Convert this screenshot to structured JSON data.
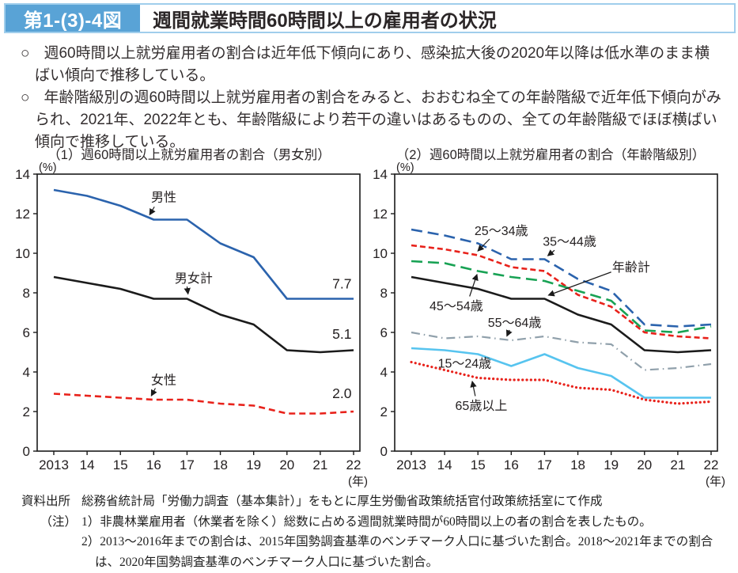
{
  "header": {
    "figure_label": "第1-(3)-4図",
    "title": "週間就業時間60時間以上の雇用者の状況"
  },
  "bullets": [
    {
      "marker": "○",
      "text": "週60時間以上就労雇用者の割合は近年低下傾向にあり、感染拡大後の2020年以降は低水準のまま横ばい傾向で推移している。"
    },
    {
      "marker": "○",
      "text": "年齢階級別の週60時間以上就労雇用者の割合をみると、おおむね全ての年齢階級で近年低下傾向がみられ、2021年、2022年とも、年齢階級により若干の違いはあるものの、全ての年齢階級でほぼ横ばい傾向で推移している。"
    }
  ],
  "chart_data": [
    {
      "type": "line",
      "title": "（1）週60時間以上就労雇用者の割合（男女別）",
      "ylabel": "(%)",
      "x_unit": "(年)",
      "categories": [
        "2013",
        "14",
        "15",
        "16",
        "17",
        "18",
        "19",
        "20",
        "21",
        "22"
      ],
      "ylim": [
        0,
        14
      ],
      "ytick_step": 2,
      "grid": false,
      "legend_position": "inline-annotations",
      "series": [
        {
          "name": "男性",
          "color": "#2B63AD",
          "dash": "",
          "width": 2.6,
          "values": [
            13.2,
            12.9,
            12.4,
            11.7,
            11.7,
            10.5,
            9.8,
            7.7,
            7.7,
            7.7
          ]
        },
        {
          "name": "男女計",
          "color": "#1B1B1B",
          "dash": "",
          "width": 2.6,
          "values": [
            8.8,
            8.5,
            8.2,
            7.7,
            7.7,
            6.9,
            6.4,
            5.1,
            5.0,
            5.1
          ]
        },
        {
          "name": "女性",
          "color": "#E8221B",
          "dash": "8 5",
          "width": 2.6,
          "values": [
            2.9,
            2.8,
            2.7,
            2.6,
            2.6,
            2.4,
            2.3,
            1.9,
            1.9,
            2.0
          ]
        }
      ],
      "annotations": [
        {
          "text": "男性",
          "x": 3.3,
          "y": 12.85,
          "fs": 16,
          "arrow": [
            3.02,
            12.35,
            2.88,
            11.95
          ]
        },
        {
          "text": "男女計",
          "x": 4.2,
          "y": 8.75,
          "fs": 16,
          "arrow": [
            4.0,
            8.32,
            4.03,
            7.95
          ]
        },
        {
          "text": "女性",
          "x": 3.3,
          "y": 3.6,
          "fs": 16,
          "arrow": [
            3.05,
            3.18,
            2.93,
            2.8
          ]
        },
        {
          "text": "7.7",
          "x": 8.65,
          "y": 8.45,
          "fs": 17.5
        },
        {
          "text": "5.1",
          "x": 8.65,
          "y": 5.9,
          "fs": 17.5
        },
        {
          "text": "2.0",
          "x": 8.65,
          "y": 2.9,
          "fs": 17.5
        }
      ]
    },
    {
      "type": "line",
      "title": "（2）週60時間以上就労雇用者の割合（年齢階級別）",
      "ylabel": "(%)",
      "x_unit": "(年)",
      "categories": [
        "2013",
        "14",
        "15",
        "16",
        "17",
        "18",
        "19",
        "20",
        "21",
        "22"
      ],
      "ylim": [
        0,
        14
      ],
      "ytick_step": 2,
      "grid": false,
      "legend_position": "inline-annotations",
      "series": [
        {
          "name": "15〜24歳",
          "color": "#57C4EF",
          "dash": "",
          "width": 2.6,
          "values": [
            5.2,
            5.1,
            4.9,
            4.3,
            4.9,
            4.2,
            3.8,
            2.7,
            2.7,
            2.7
          ]
        },
        {
          "name": "25〜34歳",
          "color": "#E8221B",
          "dash": "7 4",
          "width": 2.6,
          "values": [
            10.4,
            10.2,
            9.9,
            9.3,
            9.1,
            7.9,
            7.3,
            6.0,
            5.8,
            5.7
          ]
        },
        {
          "name": "35〜44歳",
          "color": "#2B63AD",
          "dash": "14 7",
          "width": 2.6,
          "values": [
            11.2,
            10.9,
            10.5,
            9.7,
            9.7,
            8.7,
            8.1,
            6.4,
            6.3,
            6.4
          ]
        },
        {
          "name": "45〜54歳",
          "color": "#18A254",
          "dash": "14 7",
          "width": 2.6,
          "values": [
            9.6,
            9.5,
            9.1,
            8.8,
            8.6,
            8.1,
            7.6,
            6.1,
            6.0,
            6.3
          ]
        },
        {
          "name": "55〜64歳",
          "color": "#90A0AB",
          "dash": "11 5 1.5 5",
          "width": 2.2,
          "values": [
            6.0,
            5.7,
            5.8,
            5.6,
            5.8,
            5.5,
            5.4,
            4.1,
            4.2,
            4.4
          ]
        },
        {
          "name": "65歳以上",
          "color": "#E8221B",
          "dash": "0.1 5.2",
          "width": 3.2,
          "linecap": "round",
          "values": [
            4.5,
            4.1,
            3.7,
            3.6,
            3.6,
            3.2,
            3.1,
            2.6,
            2.4,
            2.5
          ]
        },
        {
          "name": "年齢計",
          "color": "#1B1B1B",
          "dash": "",
          "width": 2.6,
          "values": [
            8.8,
            8.5,
            8.2,
            7.7,
            7.7,
            6.9,
            6.4,
            5.1,
            5.0,
            5.1
          ]
        }
      ],
      "annotations": [
        {
          "text": "25〜34歳",
          "x": 2.7,
          "y": 11.15,
          "fs": 16,
          "arrow": [
            2.35,
            10.72,
            2.0,
            10.12
          ]
        },
        {
          "text": "35〜44歳",
          "x": 4.75,
          "y": 10.6,
          "fs": 16,
          "arrow": [
            4.3,
            10.15,
            4.1,
            9.88
          ]
        },
        {
          "text": "年齢計",
          "x": 6.6,
          "y": 9.3,
          "fs": 16,
          "arrow": [
            6.0,
            9.05,
            4.12,
            7.88
          ]
        },
        {
          "text": "45〜54歳",
          "x": 1.35,
          "y": 7.35,
          "fs": 16,
          "arrow": [
            1.75,
            7.82,
            1.97,
            8.92
          ]
        },
        {
          "text": "55〜64歳",
          "x": 3.1,
          "y": 6.5,
          "fs": 16,
          "arrow": [
            2.95,
            6.12,
            2.87,
            5.82
          ]
        },
        {
          "text": "15〜24歳",
          "x": 1.6,
          "y": 4.45,
          "fs": 16
        },
        {
          "text": "65歳以上",
          "x": 2.1,
          "y": 2.3,
          "fs": 16,
          "arrow": [
            1.92,
            2.78,
            1.83,
            3.52
          ]
        }
      ]
    }
  ],
  "notes": {
    "source_label": "資料出所",
    "source_text": "総務省統計局「労働力調査（基本集計）」をもとに厚生労働省政策統括官付政策統括室にて作成",
    "note_label": "（注）",
    "items": [
      "1）非農林業雇用者（休業者を除く）総数に占める週間就業時間が60時間以上の者の割合を表したもの。",
      "2）2013～2016年までの割合は、2015年国勢調査基準のベンチマーク人口に基づいた割合。2018～2021年までの割合は、2020年国勢調査基準のベンチマーク人口に基づいた割合。"
    ]
  }
}
